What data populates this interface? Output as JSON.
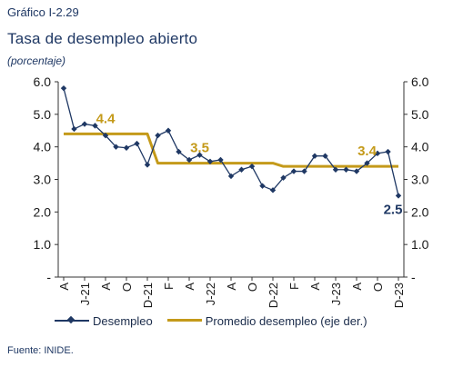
{
  "header": {
    "caption": "Gráfico I-2.29",
    "title": "Tasa de desempleo abierto",
    "subtitle": "(porcentaje)"
  },
  "footer": {
    "source": "Fuente: INIDE."
  },
  "legend": {
    "series1": "Desempleo",
    "series2": "Promedio desempleo (eje der.)"
  },
  "colors": {
    "desempleo": "#1f3864",
    "promedio": "#c49a1a",
    "axis": "#333333"
  },
  "chart_data": {
    "type": "line",
    "ylim": [
      0,
      6
    ],
    "y_ticks": [
      "-",
      "1.0",
      "2.0",
      "3.0",
      "4.0",
      "5.0",
      "6.0"
    ],
    "y2_ticks": [
      "-",
      "1.0",
      "2.0",
      "3.0",
      "4.0",
      "5.0",
      "6.0"
    ],
    "x_tick_labels": [
      "A",
      "J-21",
      "A",
      "O",
      "D-21",
      "F",
      "A",
      "J-22",
      "A",
      "O",
      "D-22",
      "F",
      "A",
      "J-23",
      "A",
      "O",
      "D-23"
    ],
    "x_tick_indices": [
      0,
      2,
      4,
      6,
      8,
      10,
      12,
      14,
      16,
      18,
      20,
      22,
      24,
      26,
      28,
      30,
      32
    ],
    "series": [
      {
        "name": "Desempleo",
        "axis": "left",
        "values": [
          5.8,
          4.55,
          4.7,
          4.65,
          4.35,
          4.0,
          3.97,
          4.1,
          3.45,
          4.35,
          4.5,
          3.85,
          3.6,
          3.75,
          3.55,
          3.6,
          3.1,
          3.3,
          3.4,
          2.8,
          2.67,
          3.05,
          3.25,
          3.25,
          3.72,
          3.72,
          3.3,
          3.3,
          3.25,
          3.5,
          3.8,
          3.85,
          2.5
        ]
      },
      {
        "name": "Promedio desempleo (eje der.)",
        "axis": "right",
        "values": [
          4.4,
          4.4,
          4.4,
          4.4,
          4.4,
          4.4,
          4.4,
          4.4,
          4.4,
          3.5,
          3.5,
          3.5,
          3.5,
          3.5,
          3.5,
          3.5,
          3.5,
          3.5,
          3.5,
          3.5,
          3.5,
          3.4,
          3.4,
          3.4,
          3.4,
          3.4,
          3.4,
          3.4,
          3.4,
          3.4,
          3.4,
          3.4,
          3.4
        ]
      }
    ],
    "annotations": [
      {
        "text": "4.4",
        "x": 4,
        "y": 4.4,
        "color": "#c49a1a"
      },
      {
        "text": "3.5",
        "x": 13,
        "y": 3.5,
        "color": "#c49a1a"
      },
      {
        "text": "3.4",
        "x": 29,
        "y": 3.4,
        "color": "#c49a1a"
      },
      {
        "text": "2.5",
        "x": 32,
        "y": 2.5,
        "color": "#1f3864"
      }
    ]
  }
}
